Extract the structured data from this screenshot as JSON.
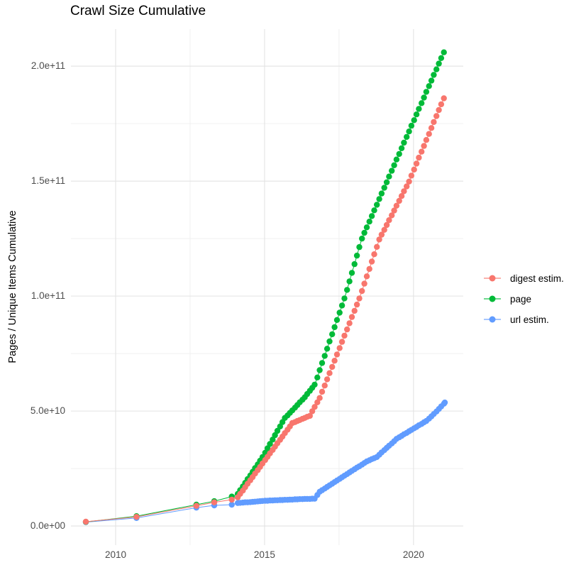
{
  "chart_data": {
    "type": "line",
    "title": "Crawl Size Cumulative",
    "xlabel": "",
    "ylabel": "Pages / Unique Items Cumulative",
    "value_unit": "counts in billions (1e9); y tick labels use scientific notation",
    "grid": true,
    "legend_position": "right",
    "x_range": [
      2008.5,
      2021.67
    ],
    "y_range_e9": [
      -8.3,
      216.1
    ],
    "x_ticks": {
      "values": [
        2010,
        2015,
        2020
      ],
      "labels": [
        "2010",
        "2015",
        "2020"
      ],
      "minor": [
        2012.5,
        2017.5
      ]
    },
    "y_ticks": {
      "values_e9": [
        0,
        50,
        100,
        150,
        200
      ],
      "labels": [
        "0.0e+00",
        "5.0e+10",
        "1.0e+11",
        "1.5e+11",
        "2.0e+11"
      ],
      "minor_e9": [
        25,
        75,
        125,
        175
      ]
    },
    "series": [
      {
        "name": "digest estim.",
        "color": "#F8766D",
        "points_year_value_e9": [
          [
            2009,
            1.9
          ],
          [
            2010.7,
            4
          ],
          [
            2012.71,
            8.8
          ],
          [
            2013.31,
            10.3
          ],
          [
            2013.9,
            11.5
          ],
          [
            2014.1,
            12.5
          ],
          [
            2014.18,
            14
          ],
          [
            2014.27,
            15.4
          ],
          [
            2014.35,
            16.9
          ],
          [
            2014.43,
            18.4
          ],
          [
            2014.52,
            19.9
          ],
          [
            2014.6,
            21.3
          ],
          [
            2014.68,
            22.8
          ],
          [
            2014.77,
            24.3
          ],
          [
            2014.85,
            25.7
          ],
          [
            2014.93,
            27.2
          ],
          [
            2015.02,
            28.7
          ],
          [
            2015.1,
            30.1
          ],
          [
            2015.18,
            31.6
          ],
          [
            2015.27,
            33.1
          ],
          [
            2015.35,
            34.5
          ],
          [
            2015.43,
            36
          ],
          [
            2015.52,
            37.5
          ],
          [
            2015.6,
            38.9
          ],
          [
            2015.68,
            40.4
          ],
          [
            2015.77,
            41.9
          ],
          [
            2015.85,
            43.3
          ],
          [
            2015.93,
            44.8
          ],
          [
            2016.02,
            45.2
          ],
          [
            2016.1,
            45.7
          ],
          [
            2016.18,
            46.1
          ],
          [
            2016.27,
            46.6
          ],
          [
            2016.35,
            47
          ],
          [
            2016.43,
            47.5
          ],
          [
            2016.52,
            47.9
          ],
          [
            2016.6,
            49.9
          ],
          [
            2016.68,
            51.8
          ],
          [
            2016.77,
            53.8
          ],
          [
            2016.85,
            55.7
          ],
          [
            2016.93,
            58.4
          ],
          [
            2017.02,
            61.1
          ],
          [
            2017.1,
            63.8
          ],
          [
            2017.18,
            66.5
          ],
          [
            2017.27,
            69.2
          ],
          [
            2017.35,
            71.9
          ],
          [
            2017.43,
            74.6
          ],
          [
            2017.52,
            77.4
          ],
          [
            2017.6,
            80.1
          ],
          [
            2017.68,
            82.8
          ],
          [
            2017.77,
            85.5
          ],
          [
            2017.85,
            88.2
          ],
          [
            2017.93,
            90.9
          ],
          [
            2018.02,
            93.6
          ],
          [
            2018.1,
            96.3
          ],
          [
            2018.18,
            99
          ],
          [
            2018.27,
            102.2
          ],
          [
            2018.35,
            105.4
          ],
          [
            2018.43,
            108.6
          ],
          [
            2018.52,
            111.8
          ],
          [
            2018.6,
            115
          ],
          [
            2018.68,
            118.2
          ],
          [
            2018.77,
            121.4
          ],
          [
            2018.85,
            124.6
          ],
          [
            2018.93,
            126.7
          ],
          [
            2019.02,
            128.8
          ],
          [
            2019.1,
            130.9
          ],
          [
            2019.18,
            133
          ],
          [
            2019.27,
            135.1
          ],
          [
            2019.35,
            137.2
          ],
          [
            2019.43,
            139.3
          ],
          [
            2019.52,
            141.4
          ],
          [
            2019.6,
            143.5
          ],
          [
            2019.68,
            145.6
          ],
          [
            2019.77,
            147.7
          ],
          [
            2019.85,
            149.8
          ],
          [
            2019.93,
            152.4
          ],
          [
            2020.02,
            155
          ],
          [
            2020.1,
            157.6
          ],
          [
            2020.18,
            160.2
          ],
          [
            2020.27,
            162.8
          ],
          [
            2020.35,
            165.3
          ],
          [
            2020.43,
            167.9
          ],
          [
            2020.52,
            170.5
          ],
          [
            2020.6,
            173.1
          ],
          [
            2020.68,
            175.7
          ],
          [
            2020.77,
            178.3
          ],
          [
            2020.85,
            180.9
          ],
          [
            2020.93,
            183.4
          ],
          [
            2021.02,
            186
          ]
        ]
      },
      {
        "name": "page",
        "color": "#00BA38",
        "points_year_value_e9": [
          [
            2009,
            1.8
          ],
          [
            2010.7,
            4.3
          ],
          [
            2012.71,
            9.3
          ],
          [
            2013.31,
            10.8
          ],
          [
            2013.9,
            12.8
          ],
          [
            2014.1,
            14
          ],
          [
            2014.18,
            15.6
          ],
          [
            2014.27,
            17.2
          ],
          [
            2014.35,
            18.8
          ],
          [
            2014.43,
            20.4
          ],
          [
            2014.52,
            22
          ],
          [
            2014.6,
            23.6
          ],
          [
            2014.68,
            25.2
          ],
          [
            2014.77,
            26.8
          ],
          [
            2014.85,
            28.4
          ],
          [
            2014.93,
            30
          ],
          [
            2015.02,
            31.9
          ],
          [
            2015.1,
            33.8
          ],
          [
            2015.18,
            35.7
          ],
          [
            2015.27,
            37.6
          ],
          [
            2015.35,
            39.5
          ],
          [
            2015.43,
            41.4
          ],
          [
            2015.52,
            43.3
          ],
          [
            2015.6,
            45.2
          ],
          [
            2015.68,
            47
          ],
          [
            2015.77,
            48.1
          ],
          [
            2015.85,
            49.2
          ],
          [
            2015.93,
            50.3
          ],
          [
            2016.02,
            51.5
          ],
          [
            2016.1,
            52.6
          ],
          [
            2016.18,
            53.8
          ],
          [
            2016.27,
            54.9
          ],
          [
            2016.35,
            56
          ],
          [
            2016.43,
            57.4
          ],
          [
            2016.52,
            58.8
          ],
          [
            2016.6,
            60.1
          ],
          [
            2016.68,
            61.5
          ],
          [
            2016.77,
            64.6
          ],
          [
            2016.85,
            67.8
          ],
          [
            2016.93,
            70.9
          ],
          [
            2017.02,
            74
          ],
          [
            2017.1,
            77.1
          ],
          [
            2017.18,
            80.3
          ],
          [
            2017.27,
            83.4
          ],
          [
            2017.35,
            86.5
          ],
          [
            2017.43,
            89.6
          ],
          [
            2017.52,
            92.8
          ],
          [
            2017.6,
            95.9
          ],
          [
            2017.68,
            99
          ],
          [
            2017.77,
            102.7
          ],
          [
            2017.85,
            106.4
          ],
          [
            2017.93,
            110.1
          ],
          [
            2018.02,
            113.9
          ],
          [
            2018.1,
            117.6
          ],
          [
            2018.18,
            121.3
          ],
          [
            2018.27,
            125
          ],
          [
            2018.35,
            127.5
          ],
          [
            2018.43,
            129.9
          ],
          [
            2018.52,
            132.4
          ],
          [
            2018.6,
            134.8
          ],
          [
            2018.68,
            137.3
          ],
          [
            2018.77,
            139.7
          ],
          [
            2018.85,
            142.2
          ],
          [
            2018.93,
            144.6
          ],
          [
            2019.02,
            147.1
          ],
          [
            2019.1,
            149.5
          ],
          [
            2019.18,
            152
          ],
          [
            2019.27,
            154.5
          ],
          [
            2019.35,
            156.9
          ],
          [
            2019.43,
            159.4
          ],
          [
            2019.52,
            161.8
          ],
          [
            2019.6,
            164.3
          ],
          [
            2019.68,
            166.7
          ],
          [
            2019.77,
            169.2
          ],
          [
            2019.85,
            171.6
          ],
          [
            2019.93,
            174.1
          ],
          [
            2020.02,
            176.5
          ],
          [
            2020.1,
            179
          ],
          [
            2020.18,
            181.4
          ],
          [
            2020.27,
            183.9
          ],
          [
            2020.35,
            186.3
          ],
          [
            2020.43,
            188.8
          ],
          [
            2020.52,
            191.3
          ],
          [
            2020.6,
            193.7
          ],
          [
            2020.68,
            196.2
          ],
          [
            2020.77,
            198.6
          ],
          [
            2020.85,
            201.1
          ],
          [
            2020.93,
            203.5
          ],
          [
            2021.02,
            206
          ]
        ]
      },
      {
        "name": "url estim.",
        "color": "#619CFF",
        "points_year_value_e9": [
          [
            2009,
            1.7
          ],
          [
            2010.7,
            3.5
          ],
          [
            2012.71,
            8
          ],
          [
            2013.31,
            9
          ],
          [
            2013.9,
            9.3
          ],
          [
            2014.1,
            10
          ],
          [
            2014.18,
            10.1
          ],
          [
            2014.27,
            10.2
          ],
          [
            2014.35,
            10.3
          ],
          [
            2014.43,
            10.3
          ],
          [
            2014.52,
            10.4
          ],
          [
            2014.6,
            10.5
          ],
          [
            2014.68,
            10.6
          ],
          [
            2014.77,
            10.7
          ],
          [
            2014.85,
            10.8
          ],
          [
            2014.93,
            10.9
          ],
          [
            2015.02,
            11
          ],
          [
            2015.1,
            11
          ],
          [
            2015.18,
            11.1
          ],
          [
            2015.27,
            11.1
          ],
          [
            2015.35,
            11.2
          ],
          [
            2015.43,
            11.2
          ],
          [
            2015.52,
            11.3
          ],
          [
            2015.6,
            11.3
          ],
          [
            2015.68,
            11.4
          ],
          [
            2015.77,
            11.4
          ],
          [
            2015.85,
            11.5
          ],
          [
            2015.93,
            11.5
          ],
          [
            2016.02,
            11.6
          ],
          [
            2016.1,
            11.6
          ],
          [
            2016.18,
            11.7
          ],
          [
            2016.27,
            11.7
          ],
          [
            2016.35,
            11.8
          ],
          [
            2016.43,
            11.8
          ],
          [
            2016.52,
            11.8
          ],
          [
            2016.6,
            11.9
          ],
          [
            2016.68,
            11.9
          ],
          [
            2016.77,
            13.5
          ],
          [
            2016.85,
            14.9
          ],
          [
            2016.93,
            15.6
          ],
          [
            2017.02,
            16.3
          ],
          [
            2017.1,
            17
          ],
          [
            2017.18,
            17.7
          ],
          [
            2017.27,
            18.4
          ],
          [
            2017.35,
            19.1
          ],
          [
            2017.43,
            19.8
          ],
          [
            2017.52,
            20.5
          ],
          [
            2017.6,
            21.2
          ],
          [
            2017.68,
            21.9
          ],
          [
            2017.77,
            22.6
          ],
          [
            2017.85,
            23.3
          ],
          [
            2017.93,
            24
          ],
          [
            2018.02,
            24.7
          ],
          [
            2018.1,
            25.4
          ],
          [
            2018.18,
            26
          ],
          [
            2018.27,
            26.7
          ],
          [
            2018.35,
            27.4
          ],
          [
            2018.43,
            28.1
          ],
          [
            2018.52,
            28.6
          ],
          [
            2018.6,
            29.1
          ],
          [
            2018.68,
            29.5
          ],
          [
            2018.77,
            30
          ],
          [
            2018.85,
            31
          ],
          [
            2018.93,
            32
          ],
          [
            2019.02,
            33
          ],
          [
            2019.1,
            34
          ],
          [
            2019.18,
            34.9
          ],
          [
            2019.27,
            35.9
          ],
          [
            2019.35,
            36.9
          ],
          [
            2019.43,
            37.9
          ],
          [
            2019.52,
            38.6
          ],
          [
            2019.6,
            39.2
          ],
          [
            2019.68,
            39.9
          ],
          [
            2019.77,
            40.5
          ],
          [
            2019.85,
            41.2
          ],
          [
            2019.93,
            41.8
          ],
          [
            2020.02,
            42.5
          ],
          [
            2020.1,
            43.1
          ],
          [
            2020.18,
            43.8
          ],
          [
            2020.27,
            44.4
          ],
          [
            2020.35,
            45.1
          ],
          [
            2020.43,
            45.7
          ],
          [
            2020.52,
            46.7
          ],
          [
            2020.6,
            47.7
          ],
          [
            2020.68,
            48.7
          ],
          [
            2020.77,
            49.8
          ],
          [
            2020.85,
            50.9
          ],
          [
            2020.93,
            52
          ],
          [
            2021.02,
            53.2
          ],
          [
            2021.05,
            53.7
          ]
        ]
      }
    ]
  },
  "style_colors": {
    "grid_major": "#e3e3e3",
    "grid_minor": "#f0f0f0",
    "axis_text": "#4d4d4d"
  }
}
